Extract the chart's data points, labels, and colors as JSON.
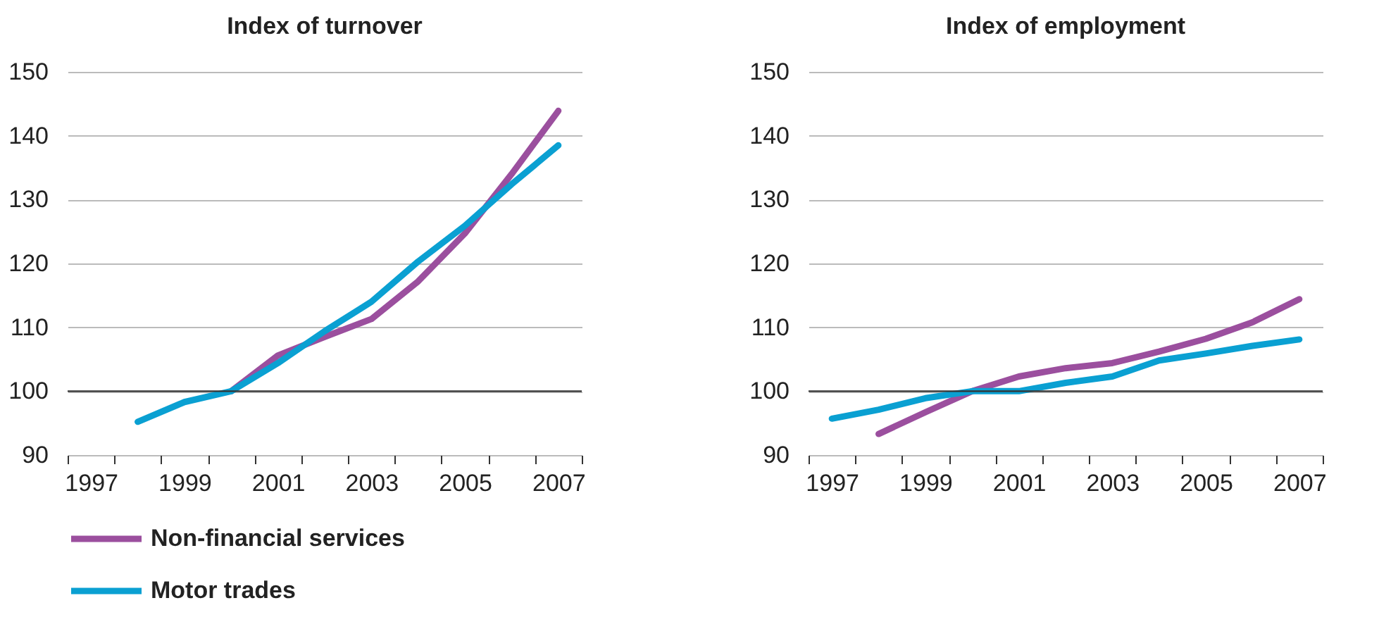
{
  "chart_data": [
    {
      "type": "line",
      "title": "Index of turnover",
      "x": [
        1998,
        1999,
        2000,
        2001,
        2002,
        2003,
        2004,
        2005,
        2006,
        2007
      ],
      "series": [
        {
          "name": "Non-financial services",
          "color": "#9b4f9e",
          "values": [
            null,
            null,
            100,
            105.6,
            108.5,
            111.3,
            117.2,
            124.7,
            134,
            143.9
          ]
        },
        {
          "name": "Motor trades",
          "color": "#0aa0d2",
          "values": [
            95.2,
            98.3,
            100,
            104.4,
            109.4,
            114,
            120.3,
            125.9,
            132.4,
            138.5
          ]
        }
      ],
      "xlim": [
        1996.5,
        2007.5
      ],
      "xticks": [
        {
          "value": 1996.5,
          "label": null
        },
        1997,
        {
          "value": 1997.5,
          "label": null
        },
        {
          "value": 1998.5,
          "label": null
        },
        1999,
        {
          "value": 1999.5,
          "label": null
        },
        {
          "value": 2000.5,
          "label": null
        },
        2001,
        {
          "value": 2001.5,
          "label": null
        },
        {
          "value": 2002.5,
          "label": null
        },
        2003,
        {
          "value": 2003.5,
          "label": null
        },
        {
          "value": 2004.5,
          "label": null
        },
        2005,
        {
          "value": 2005.5,
          "label": null
        },
        {
          "value": 2006.5,
          "label": null
        },
        2007,
        {
          "value": 2007.5,
          "label": null
        }
      ],
      "ylim": [
        90,
        150
      ],
      "yticks": [
        90,
        100,
        110,
        120,
        130,
        140,
        150
      ],
      "ref_lines": [
        {
          "axis": "y",
          "value": 100,
          "color": "#333333"
        }
      ],
      "grid": "y",
      "legend": "bottom"
    },
    {
      "type": "line",
      "title": "Index of employment",
      "x": [
        1997,
        1998,
        1999,
        2000,
        2001,
        2002,
        2003,
        2004,
        2005,
        2006,
        2007
      ],
      "series": [
        {
          "name": "Non-financial services",
          "color": "#9b4f9e",
          "values": [
            null,
            93.3,
            96.7,
            100,
            102.3,
            103.6,
            104.4,
            106.2,
            108.2,
            110.8,
            114.4
          ]
        },
        {
          "name": "Motor trades",
          "color": "#0aa0d2",
          "values": [
            95.7,
            97.1,
            98.9,
            100,
            100,
            101.3,
            102.3,
            104.8,
            105.9,
            107.1,
            108.1
          ]
        }
      ],
      "xlim": [
        1996.5,
        2007.5
      ],
      "xticks": [
        {
          "value": 1996.5,
          "label": null
        },
        1997,
        {
          "value": 1997.5,
          "label": null
        },
        {
          "value": 1998.5,
          "label": null
        },
        1999,
        {
          "value": 1999.5,
          "label": null
        },
        {
          "value": 2000.5,
          "label": null
        },
        2001,
        {
          "value": 2001.5,
          "label": null
        },
        {
          "value": 2002.5,
          "label": null
        },
        2003,
        {
          "value": 2003.5,
          "label": null
        },
        {
          "value": 2004.5,
          "label": null
        },
        2005,
        {
          "value": 2005.5,
          "label": null
        },
        {
          "value": 2006.5,
          "label": null
        },
        2007,
        {
          "value": 2007.5,
          "label": null
        }
      ],
      "ylim": [
        90,
        150
      ],
      "yticks": [
        90,
        100,
        110,
        120,
        130,
        140,
        150
      ],
      "ref_lines": [
        {
          "axis": "y",
          "value": 100
        }
      ],
      "grid": "y",
      "legend": "bottom"
    }
  ]
}
